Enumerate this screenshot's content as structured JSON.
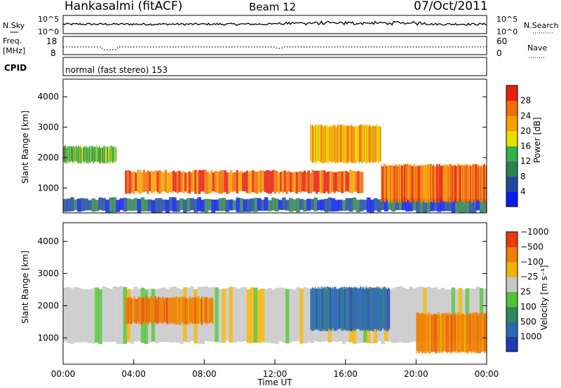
{
  "header": {
    "station": "Hankasalmi (fitACF)",
    "beam": "Beam 12",
    "date": "07/Oct/2011"
  },
  "noise_panel": {
    "left_label": "N.Sky",
    "right_label": "N.Search",
    "left_ticks": [
      "10^5",
      "10^0"
    ],
    "right_ticks": [
      "10^5",
      "10^0"
    ]
  },
  "freq_panel": {
    "left_label_line1": "Freq.",
    "left_label_line2": "[MHz]",
    "left_ticks": [
      "18",
      "8"
    ],
    "right_label": "Nave",
    "right_ticks": [
      "60",
      "0"
    ]
  },
  "cpid_panel": {
    "label": "CPID",
    "value": "normal (fast stereo) 153"
  },
  "chart_data": [
    {
      "type": "heatmap",
      "name": "power",
      "ylabel": "Slant Range [km]",
      "y_ticks": [
        "1000",
        "2000",
        "3000",
        "4000"
      ],
      "ylim": [
        180,
        4580
      ],
      "colorbar_label": "Power [dB]",
      "colorbar_ticks": [
        "4",
        "8",
        "12",
        "16",
        "20",
        "24",
        "28"
      ],
      "colors": [
        "#0a1cf0",
        "#1f4aa0",
        "#2f7f55",
        "#32b04b",
        "#e4e000",
        "#f7a000",
        "#f07000",
        "#e82010"
      ],
      "features": [
        {
          "region": "near-range ground scatter",
          "time_start": "00:00",
          "time_end": "24:00",
          "range_km": [
            180,
            700
          ],
          "power_db": 4
        },
        {
          "region": "morning F-region band",
          "time_start": "00:00",
          "time_end": "03:00",
          "range_km": [
            1800,
            2400
          ],
          "power_db": 12
        },
        {
          "region": "main evening band",
          "time_start": "03:30",
          "time_end": "17:00",
          "range_km": [
            800,
            1600
          ],
          "power_db": 24
        },
        {
          "region": "upper scatter",
          "time_start": "14:00",
          "time_end": "18:00",
          "range_km": [
            1800,
            3100
          ],
          "power_db": 20
        },
        {
          "region": "late scatter",
          "time_start": "18:00",
          "time_end": "24:00",
          "range_km": [
            500,
            1800
          ],
          "power_db": 24
        }
      ]
    },
    {
      "type": "heatmap",
      "name": "velocity",
      "ylabel": "Slant Range [km]",
      "y_ticks": [
        "1000",
        "2000",
        "3000",
        "4000"
      ],
      "ylim": [
        180,
        4580
      ],
      "colorbar_label": "Velocity [m s⁻¹]",
      "colorbar_ticks": [
        "1000",
        "500",
        "100",
        "25",
        "−25",
        "−100",
        "−500",
        "−1000"
      ],
      "colors": [
        "#1e3cb4",
        "#2a6ab0",
        "#2d8a5a",
        "#52c23a",
        "#c8c8c8",
        "#f0b400",
        "#f08000",
        "#e83c10"
      ],
      "xlabel": "Time UT",
      "x_ticks": [
        "00:00",
        "04:00",
        "08:00",
        "12:00",
        "16:00",
        "20:00",
        "00:00"
      ],
      "features": [
        {
          "region": "ground scatter band",
          "time_start": "00:00",
          "time_end": "24:00",
          "range_km": [
            800,
            2600
          ],
          "velocity": 0
        },
        {
          "region": "negative velocity patch",
          "time_start": "03:30",
          "time_end": "08:30",
          "range_km": [
            1400,
            2300
          ],
          "velocity": -500
        },
        {
          "region": "positive velocity patch",
          "time_start": "14:00",
          "time_end": "18:30",
          "range_km": [
            1200,
            2600
          ],
          "velocity": 500
        },
        {
          "region": "late negative velocities",
          "time_start": "20:00",
          "time_end": "24:00",
          "range_km": [
            500,
            1800
          ],
          "velocity": -500
        }
      ]
    }
  ]
}
